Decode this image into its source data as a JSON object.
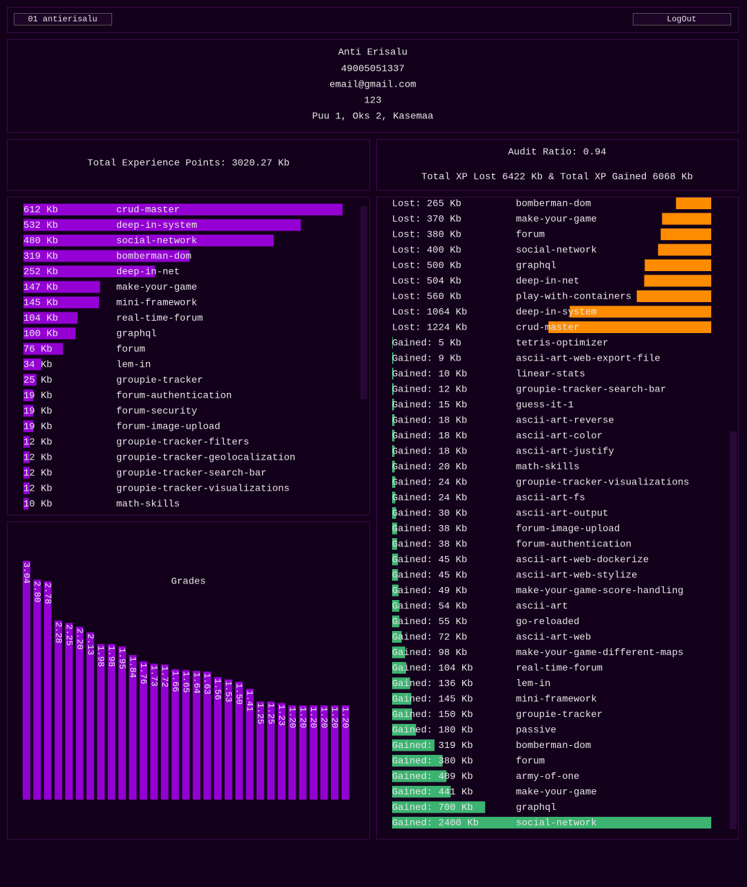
{
  "header": {
    "user": "01 antierisalu",
    "logout": "LogOut"
  },
  "profile": {
    "name": "Anti Erisalu",
    "id": "49005051337",
    "email": "email@gmail.com",
    "field": "123",
    "address": "Puu 1, Oks 2, Kasemaa"
  },
  "xp_total": "Total Experience Points: 3020.27 Kb",
  "audit": {
    "ratio": "Audit Ratio: 0.94",
    "totals": "Total XP Lost 6422 Kb & Total XP Gained 6068 Kb"
  },
  "xp_list": {
    "color": "#9400d3",
    "items": [
      {
        "label": "612 Kb",
        "name": "crud-master",
        "value": 612
      },
      {
        "label": "532 Kb",
        "name": "deep-in-system",
        "value": 532
      },
      {
        "label": "480 Kb",
        "name": "social-network",
        "value": 480
      },
      {
        "label": "319 Kb",
        "name": "bomberman-dom",
        "value": 319
      },
      {
        "label": "252 Kb",
        "name": "deep-in-net",
        "value": 252
      },
      {
        "label": "147 Kb",
        "name": "make-your-game",
        "value": 147
      },
      {
        "label": "145 Kb",
        "name": "mini-framework",
        "value": 145
      },
      {
        "label": "104 Kb",
        "name": "real-time-forum",
        "value": 104
      },
      {
        "label": "100 Kb",
        "name": "graphql",
        "value": 100
      },
      {
        "label": "76 Kb",
        "name": "forum",
        "value": 76
      },
      {
        "label": "34 Kb",
        "name": "lem-in",
        "value": 34
      },
      {
        "label": "25 Kb",
        "name": "groupie-tracker",
        "value": 25
      },
      {
        "label": "19 Kb",
        "name": "forum-authentication",
        "value": 19
      },
      {
        "label": "19 Kb",
        "name": "forum-security",
        "value": 19
      },
      {
        "label": "19 Kb",
        "name": "forum-image-upload",
        "value": 19
      },
      {
        "label": "12 Kb",
        "name": "groupie-tracker-filters",
        "value": 12
      },
      {
        "label": "12 Kb",
        "name": "groupie-tracker-geolocalization",
        "value": 12
      },
      {
        "label": "12 Kb",
        "name": "groupie-tracker-search-bar",
        "value": 12
      },
      {
        "label": "12 Kb",
        "name": "groupie-tracker-visualizations",
        "value": 12
      },
      {
        "label": "10 Kb",
        "name": "math-skills",
        "value": 10
      }
    ]
  },
  "audit_list": {
    "lost_color": "#ff8c00",
    "gained_color": "#3cb371",
    "lost": [
      {
        "label": "Lost: 265 Kb",
        "name": "bomberman-dom",
        "value": 265
      },
      {
        "label": "Lost: 370 Kb",
        "name": "make-your-game",
        "value": 370
      },
      {
        "label": "Lost: 380 Kb",
        "name": "forum",
        "value": 380
      },
      {
        "label": "Lost: 400 Kb",
        "name": "social-network",
        "value": 400
      },
      {
        "label": "Lost: 500 Kb",
        "name": "graphql",
        "value": 500
      },
      {
        "label": "Lost: 504 Kb",
        "name": "deep-in-net",
        "value": 504
      },
      {
        "label": "Lost: 560 Kb",
        "name": "play-with-containers",
        "value": 560
      },
      {
        "label": "Lost: 1064 Kb",
        "name": "deep-in-system",
        "value": 1064
      },
      {
        "label": "Lost: 1224 Kb",
        "name": "crud-master",
        "value": 1224
      }
    ],
    "gained": [
      {
        "label": "Gained: 5 Kb",
        "name": "tetris-optimizer",
        "value": 5
      },
      {
        "label": "Gained: 9 Kb",
        "name": "ascii-art-web-export-file",
        "value": 9
      },
      {
        "label": "Gained: 10 Kb",
        "name": "linear-stats",
        "value": 10
      },
      {
        "label": "Gained: 12 Kb",
        "name": "groupie-tracker-search-bar",
        "value": 12
      },
      {
        "label": "Gained: 15 Kb",
        "name": "guess-it-1",
        "value": 15
      },
      {
        "label": "Gained: 18 Kb",
        "name": "ascii-art-reverse",
        "value": 18
      },
      {
        "label": "Gained: 18 Kb",
        "name": "ascii-art-color",
        "value": 18
      },
      {
        "label": "Gained: 18 Kb",
        "name": "ascii-art-justify",
        "value": 18
      },
      {
        "label": "Gained: 20 Kb",
        "name": "math-skills",
        "value": 20
      },
      {
        "label": "Gained: 24 Kb",
        "name": "groupie-tracker-visualizations",
        "value": 24
      },
      {
        "label": "Gained: 24 Kb",
        "name": "ascii-art-fs",
        "value": 24
      },
      {
        "label": "Gained: 30 Kb",
        "name": "ascii-art-output",
        "value": 30
      },
      {
        "label": "Gained: 38 Kb",
        "name": "forum-image-upload",
        "value": 38
      },
      {
        "label": "Gained: 38 Kb",
        "name": "forum-authentication",
        "value": 38
      },
      {
        "label": "Gained: 45 Kb",
        "name": "ascii-art-web-dockerize",
        "value": 45
      },
      {
        "label": "Gained: 45 Kb",
        "name": "ascii-art-web-stylize",
        "value": 45
      },
      {
        "label": "Gained: 49 Kb",
        "name": "make-your-game-score-handling",
        "value": 49
      },
      {
        "label": "Gained: 54 Kb",
        "name": "ascii-art",
        "value": 54
      },
      {
        "label": "Gained: 55 Kb",
        "name": "go-reloaded",
        "value": 55
      },
      {
        "label": "Gained: 72 Kb",
        "name": "ascii-art-web",
        "value": 72
      },
      {
        "label": "Gained: 98 Kb",
        "name": "make-your-game-different-maps",
        "value": 98
      },
      {
        "label": "Gained: 104 Kb",
        "name": "real-time-forum",
        "value": 104
      },
      {
        "label": "Gained: 136 Kb",
        "name": "lem-in",
        "value": 136
      },
      {
        "label": "Gained: 145 Kb",
        "name": "mini-framework",
        "value": 145
      },
      {
        "label": "Gained: 150 Kb",
        "name": "groupie-tracker",
        "value": 150
      },
      {
        "label": "Gained: 180 Kb",
        "name": "passive",
        "value": 180
      },
      {
        "label": "Gained: 319 Kb",
        "name": "bomberman-dom",
        "value": 319
      },
      {
        "label": "Gained: 380 Kb",
        "name": "forum",
        "value": 380
      },
      {
        "label": "Gained: 409 Kb",
        "name": "army-of-one",
        "value": 409
      },
      {
        "label": "Gained: 441 Kb",
        "name": "make-your-game",
        "value": 441
      },
      {
        "label": "Gained: 700 Kb",
        "name": "graphql",
        "value": 700
      },
      {
        "label": "Gained: 2400 Kb",
        "name": "social-network",
        "value": 2400
      }
    ]
  },
  "chart_data": {
    "type": "bar",
    "title": "Grades",
    "color": "#9400d3",
    "values": [
      3.04,
      2.8,
      2.78,
      2.28,
      2.25,
      2.2,
      2.13,
      1.98,
      1.98,
      1.95,
      1.84,
      1.76,
      1.73,
      1.72,
      1.66,
      1.65,
      1.64,
      1.63,
      1.56,
      1.53,
      1.5,
      1.41,
      1.25,
      1.25,
      1.23,
      1.2,
      1.2,
      1.2,
      1.2,
      1.2,
      1.2
    ],
    "value_labels": [
      "3.04",
      "2.80",
      "2.78",
      "2.28",
      "2.25",
      "2.20",
      "2.13",
      "1.98",
      "1.98",
      "1.95",
      "1.84",
      "1.76",
      "1.73",
      "1.72",
      "1.66",
      "1.65",
      "1.64",
      "1.63",
      "1.56",
      "1.53",
      "1.50",
      "1.41",
      "1.25",
      "1.25",
      "1.23",
      "1.20",
      "1.20",
      "1.20",
      "1.20",
      "1.20",
      "1.20"
    ]
  }
}
